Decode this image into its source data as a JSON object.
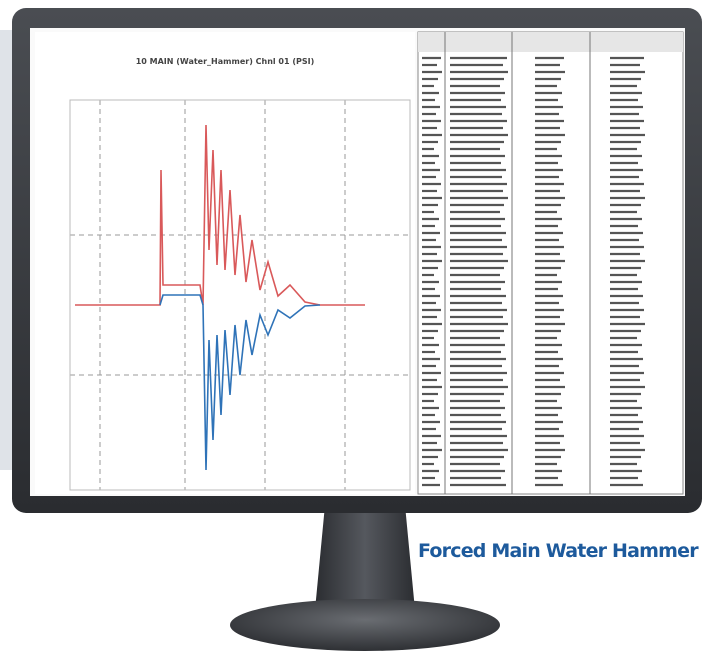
{
  "screen": {
    "chart_title": "10 MAIN (Water_Hammer) Chnl 01 (PSI)"
  },
  "caption": "Forced Main Water Hammer"
}
